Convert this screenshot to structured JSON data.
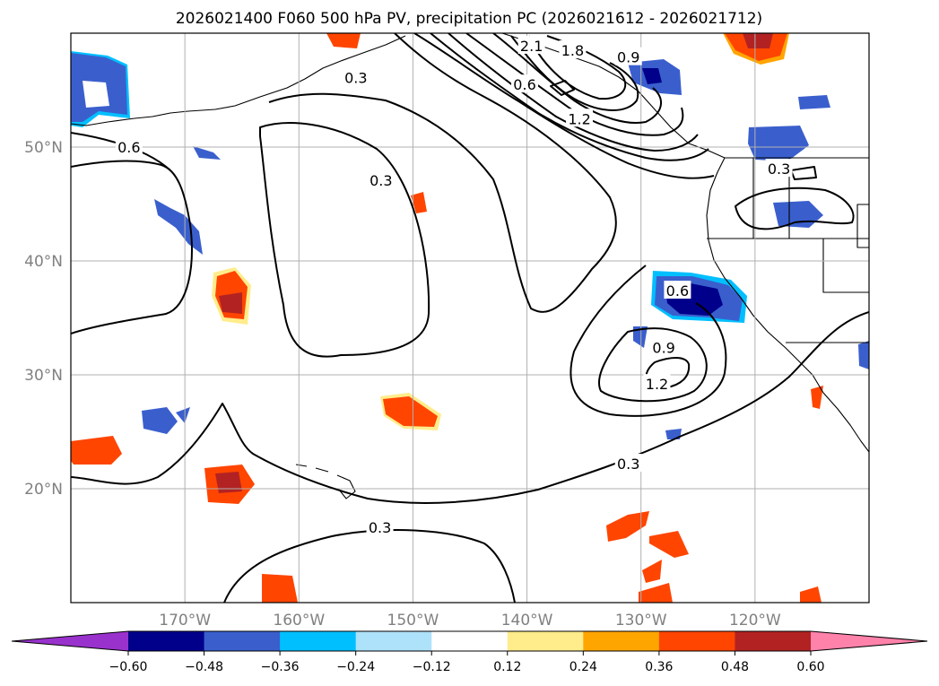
{
  "chart_data": {
    "type": "contour-map",
    "title": "2026021400 F060 500 hPa PV, precipitation PC (2026021612 - 2026021712)",
    "x_axis": {
      "unit": "degrees longitude",
      "range": [
        -180,
        -110
      ],
      "ticks": [
        {
          "value": -170,
          "label": "170°W"
        },
        {
          "value": -160,
          "label": "160°W"
        },
        {
          "value": -150,
          "label": "150°W"
        },
        {
          "value": -140,
          "label": "140°W"
        },
        {
          "value": -130,
          "label": "130°W"
        },
        {
          "value": -120,
          "label": "120°W"
        }
      ]
    },
    "y_axis": {
      "unit": "degrees latitude",
      "range": [
        10,
        60
      ],
      "ticks": [
        {
          "value": 20,
          "label": "20°N"
        },
        {
          "value": 30,
          "label": "30°N"
        },
        {
          "value": 40,
          "label": "40°N"
        },
        {
          "value": 50,
          "label": "50°N"
        }
      ]
    },
    "grid": true,
    "colorbar": {
      "orientation": "horizontal",
      "extend": "both",
      "levels": [
        -0.72,
        -0.6,
        -0.48,
        -0.36,
        -0.24,
        -0.12,
        0.12,
        0.24,
        0.36,
        0.48,
        0.6,
        0.72
      ],
      "colors": [
        "#9932cc",
        "#00008b",
        "#3a5fcd",
        "#00bfff",
        "#aee2fa",
        "#ffffff",
        "#ffec8b",
        "#ffa500",
        "#ff4500",
        "#b22222",
        "#ff82ab"
      ],
      "tick_labels": [
        "−0.60",
        "−0.48",
        "−0.36",
        "−0.24",
        "−0.12",
        "0.12",
        "0.24",
        "0.36",
        "0.48",
        "0.60"
      ]
    },
    "pv_contour_labels": [
      {
        "text": "2.1",
        "lon": -139.6,
        "lat": 58.9
      },
      {
        "text": "1.8",
        "lon": -136.0,
        "lat": 58.5
      },
      {
        "text": "0.9",
        "lon": -131.1,
        "lat": 57.9
      },
      {
        "text": "0.6",
        "lon": -140.2,
        "lat": 55.5
      },
      {
        "text": "1.2",
        "lon": -135.4,
        "lat": 52.5
      },
      {
        "text": "0.3",
        "lon": -155.0,
        "lat": 56.1
      },
      {
        "text": "0.6",
        "lon": -174.9,
        "lat": 50.0
      },
      {
        "text": "0.3",
        "lon": -152.8,
        "lat": 47.1
      },
      {
        "text": "0.3",
        "lon": -117.9,
        "lat": 48.1
      },
      {
        "text": "0.6",
        "lon": -126.8,
        "lat": 37.4
      },
      {
        "text": "0.9",
        "lon": -128.0,
        "lat": 32.4
      },
      {
        "text": "1.2",
        "lon": -128.6,
        "lat": 29.2
      },
      {
        "text": "0.3",
        "lon": -131.1,
        "lat": 22.2
      },
      {
        "text": "0.3",
        "lon": -152.9,
        "lat": 16.6
      }
    ]
  }
}
